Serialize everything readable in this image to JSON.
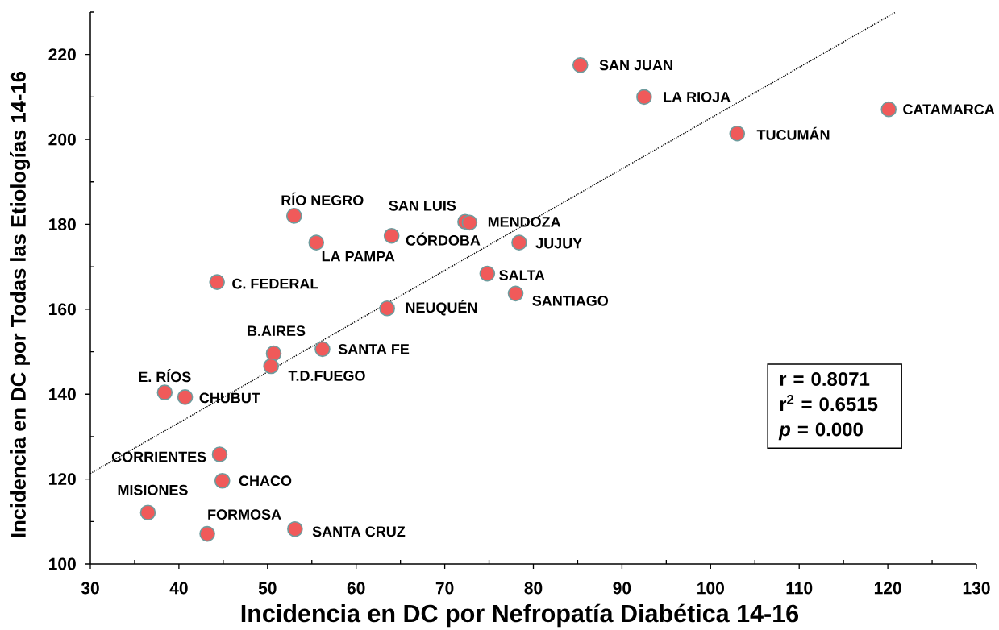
{
  "chart_data": {
    "type": "scatter",
    "xlabel": "Incidencia en DC por Nefropatía Diabética 14-16",
    "ylabel": "Incidencia en DC por Todas las Etiologías 14-16",
    "xlim": [
      30,
      130
    ],
    "ylim": [
      100,
      230
    ],
    "xticks": [
      30,
      {
        "value": 35,
        "label": null
      },
      40,
      {
        "value": 45,
        "label": null
      },
      50,
      {
        "value": 55,
        "label": null
      },
      60,
      {
        "value": 65,
        "label": null
      },
      70,
      {
        "value": 75,
        "label": null
      },
      80,
      {
        "value": 85,
        "label": null
      },
      90,
      {
        "value": 95,
        "label": null
      },
      100,
      {
        "value": 105,
        "label": null
      },
      110,
      {
        "value": 115,
        "label": null
      },
      120,
      {
        "value": 125,
        "label": null
      },
      130
    ],
    "yticks": [
      100,
      {
        "value": 110,
        "label": null
      },
      120,
      {
        "value": 130,
        "label": null
      },
      140,
      {
        "value": 150,
        "label": null
      },
      160,
      {
        "value": 170,
        "label": null
      },
      180,
      {
        "value": 190,
        "label": null
      },
      200,
      {
        "value": 210,
        "label": null
      },
      220,
      {
        "value": 230,
        "label": null
      }
    ],
    "grid": false,
    "legend": false,
    "marker": "circle",
    "series": [
      {
        "type": "scatter",
        "color": "#f05a5a",
        "x": [
          85.3,
          92.5,
          120.1,
          103.0,
          53.0,
          72.3,
          72.8,
          64.0,
          55.5,
          78.4,
          44.3,
          74.8,
          78.0,
          63.5,
          50.7,
          56.2,
          50.4,
          38.4,
          40.7,
          44.6,
          44.9,
          36.5,
          43.2,
          53.1
        ],
        "values": [
          217.5,
          210.0,
          207.1,
          201.4,
          182.0,
          180.6,
          180.4,
          177.3,
          175.7,
          175.7,
          166.4,
          168.4,
          163.7,
          160.2,
          149.6,
          150.6,
          146.6,
          140.4,
          139.3,
          125.8,
          119.6,
          112.1,
          107.1,
          108.2
        ]
      },
      {
        "type": "line",
        "color": "#000000",
        "line_style": "dotted",
        "marker": "none",
        "x": [
          30,
          120.8
        ],
        "values": [
          121.3,
          229.9
        ]
      }
    ],
    "annotations": [
      {
        "text": "SAN JUAN",
        "x": 85.3,
        "y": 217.5
      },
      {
        "text": "LA RIOJA",
        "x": 92.5,
        "y": 210.0
      },
      {
        "text": "CATAMARCA",
        "x": 120.1,
        "y": 207.1
      },
      {
        "text": "TUCUMÁN",
        "x": 103.0,
        "y": 201.4
      },
      {
        "text": "RÍO NEGRO",
        "x": 53.0,
        "y": 182.0
      },
      {
        "text": "SAN LUIS",
        "x": 72.3,
        "y": 180.6
      },
      {
        "text": "MENDOZA",
        "x": 72.8,
        "y": 180.4
      },
      {
        "text": "CÓRDOBA",
        "x": 64.0,
        "y": 177.3
      },
      {
        "text": "LA PAMPA",
        "x": 55.5,
        "y": 175.7
      },
      {
        "text": "JUJUY",
        "x": 78.4,
        "y": 175.7
      },
      {
        "text": "C. FEDERAL",
        "x": 44.3,
        "y": 166.4
      },
      {
        "text": "SALTA",
        "x": 74.8,
        "y": 168.4
      },
      {
        "text": "SANTIAGO",
        "x": 78.0,
        "y": 163.7
      },
      {
        "text": "NEUQUÉN",
        "x": 63.5,
        "y": 160.2
      },
      {
        "text": "B.AIRES",
        "x": 50.7,
        "y": 149.6
      },
      {
        "text": "SANTA FE",
        "x": 56.2,
        "y": 150.6
      },
      {
        "text": "T.D.FUEGO",
        "x": 50.4,
        "y": 146.6
      },
      {
        "text": "E. RÍOS",
        "x": 38.4,
        "y": 140.4
      },
      {
        "text": "CHUBUT",
        "x": 40.7,
        "y": 139.3
      },
      {
        "text": "CORRIENTES",
        "x": 44.6,
        "y": 125.8
      },
      {
        "text": "CHACO",
        "x": 44.9,
        "y": 119.6
      },
      {
        "text": "MISIONES",
        "x": 36.5,
        "y": 112.1
      },
      {
        "text": "FORMOSA",
        "x": 43.2,
        "y": 107.1
      },
      {
        "text": "SANTA CRUZ",
        "x": 53.1,
        "y": 108.2
      },
      "r = 0.8071",
      "r$^{2}$ = 0.6515",
      "*p* = 0.000"
    ]
  }
}
